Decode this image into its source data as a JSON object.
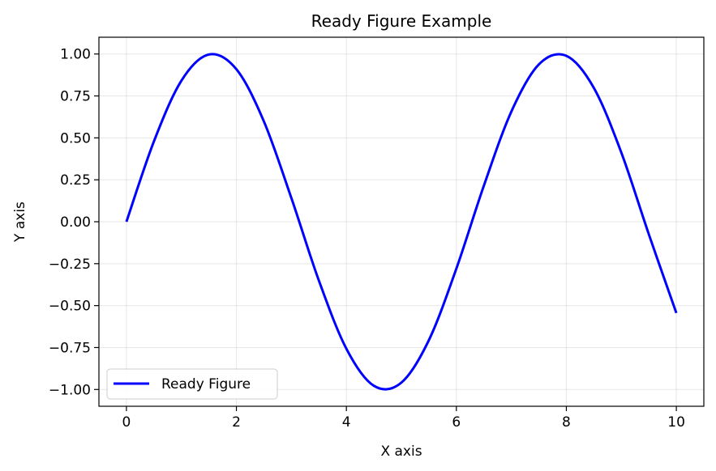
{
  "chart_data": {
    "type": "line",
    "title": "Ready Figure Example",
    "xlabel": "X axis",
    "ylabel": "Y axis",
    "xlim": [
      -0.5,
      10.5
    ],
    "ylim": [
      -1.1,
      1.1
    ],
    "xticks": [
      0,
      2,
      4,
      6,
      8,
      10
    ],
    "xtick_labels": [
      "0",
      "2",
      "4",
      "6",
      "8",
      "10"
    ],
    "yticks": [
      1.0,
      0.75,
      0.5,
      0.25,
      0.0,
      -0.25,
      -0.5,
      -0.75,
      -1.0
    ],
    "ytick_labels": [
      "1.00",
      "0.75",
      "0.50",
      "0.25",
      "0.00",
      "−0.25",
      "−0.50",
      "−0.75",
      "−1.00"
    ],
    "grid": true,
    "legend_position": "lower-left",
    "series": [
      {
        "name": "Ready Figure",
        "color": "#0000ff",
        "x": [
          0,
          0.5,
          1,
          1.5,
          2,
          2.5,
          3,
          3.5,
          4,
          4.5,
          5,
          5.5,
          6,
          6.5,
          7,
          7.5,
          8,
          8.5,
          9,
          9.5,
          10
        ],
        "y": [
          0,
          0.479,
          0.841,
          0.997,
          0.909,
          0.598,
          0.141,
          -0.351,
          -0.757,
          -0.978,
          -0.959,
          -0.706,
          -0.279,
          0.215,
          0.657,
          0.938,
          0.989,
          0.798,
          0.412,
          -0.075,
          -0.544
        ]
      }
    ]
  }
}
